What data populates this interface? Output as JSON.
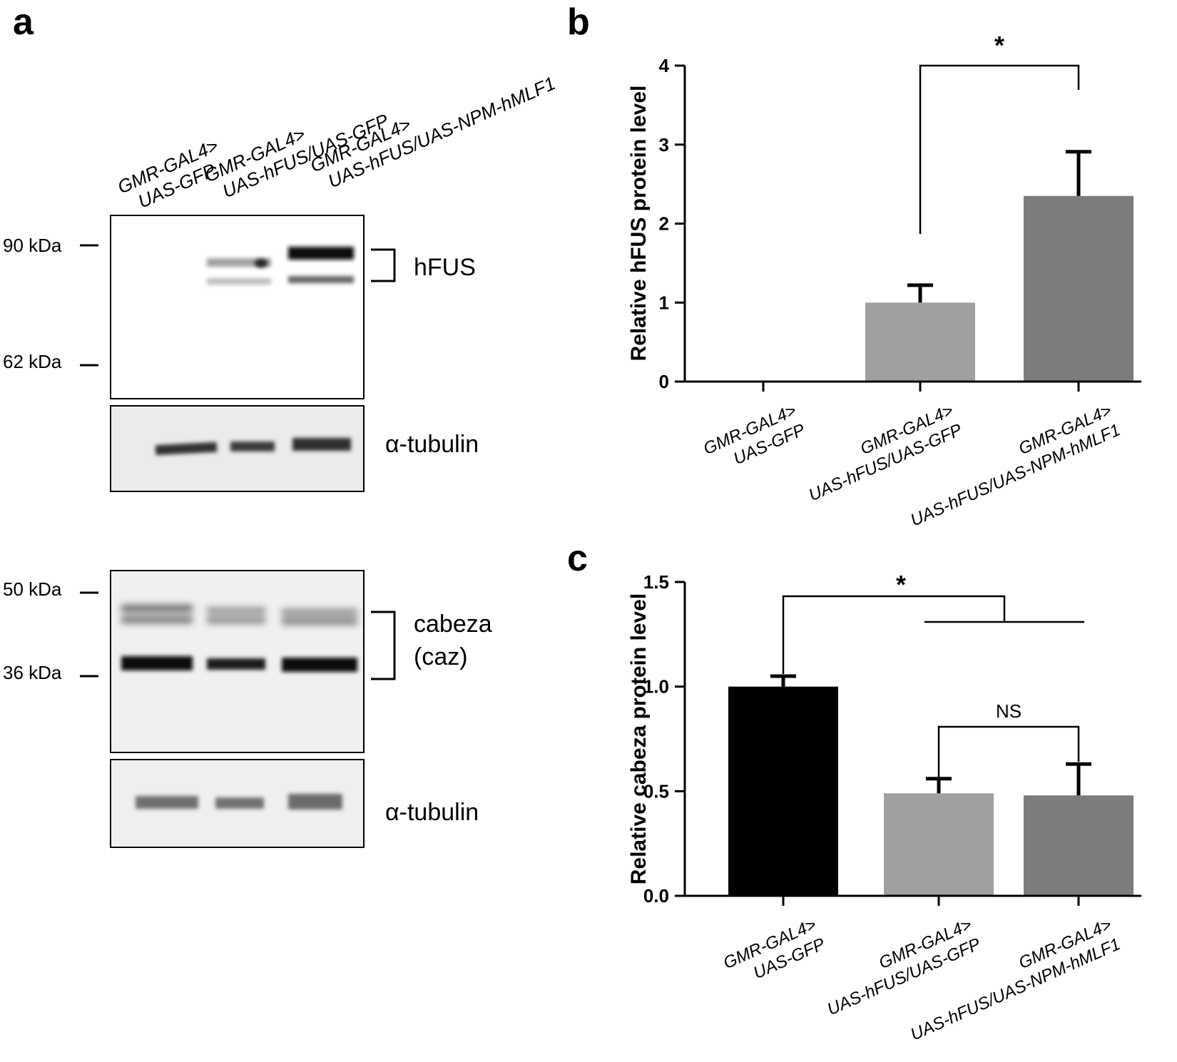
{
  "panel_labels": {
    "a": "a",
    "b": "b",
    "c": "c"
  },
  "blot": {
    "lanes": [
      {
        "l1": "GMR-GAL4>",
        "l2": "UAS-GFP"
      },
      {
        "l1": "GMR-GAL4>",
        "l2": "UAS-hFUS/UAS-GFP"
      },
      {
        "l1": "GMR-GAL4>",
        "l2": "UAS-hFUS/UAS-NPM-hMLF1"
      }
    ],
    "markers": [
      "90 kDa",
      "62 kDa",
      "50 kDa",
      "36 kDa"
    ],
    "proteins": {
      "hfus": "hFUS",
      "tubulin1": "α-tubulin",
      "caz1": "cabeza",
      "caz2": "(caz)",
      "tubulin2": "α-tubulin"
    }
  },
  "chart_data": [
    {
      "panel": "b",
      "type": "bar",
      "ylabel": "Relative hFUS protein level",
      "ylim": [
        0,
        4
      ],
      "yticks": [
        "0",
        "1",
        "2",
        "3",
        "4"
      ],
      "categories": [
        {
          "l1": "GMR-GAL4>",
          "l2": "UAS-GFP"
        },
        {
          "l1": "GMR-GAL4>",
          "l2": "UAS-hFUS/UAS-GFP"
        },
        {
          "l1": "GMR-GAL4>",
          "l2": "UAS-hFUS/UAS-NPM-hMLF1"
        }
      ],
      "values": [
        0,
        1.0,
        2.35
      ],
      "errors": [
        0,
        0.22,
        0.56
      ],
      "colors": [
        "#000000",
        "#a0a0a0",
        "#7c7c7c"
      ],
      "significance": [
        {
          "label": "*",
          "from": 1,
          "to": 2
        }
      ]
    },
    {
      "panel": "c",
      "type": "bar",
      "ylabel": "Relative cabeza protein level",
      "ylim": [
        0,
        1.5
      ],
      "yticks": [
        "0.0",
        "0.5",
        "1.0",
        "1.5"
      ],
      "categories": [
        {
          "l1": "GMR-GAL4>",
          "l2": "UAS-GFP"
        },
        {
          "l1": "GMR-GAL4>",
          "l2": "UAS-hFUS/UAS-GFP"
        },
        {
          "l1": "GMR-GAL4>",
          "l2": "UAS-hFUS/UAS-NPM-hMLF1"
        }
      ],
      "values": [
        1.0,
        0.49,
        0.48
      ],
      "errors": [
        0.05,
        0.07,
        0.15
      ],
      "colors": [
        "#000000",
        "#a0a0a0",
        "#7c7c7c"
      ],
      "significance": [
        {
          "label": "*",
          "from": 0,
          "to": [
            1,
            2
          ]
        },
        {
          "label": "NS",
          "from": 1,
          "to": 2
        }
      ]
    }
  ]
}
